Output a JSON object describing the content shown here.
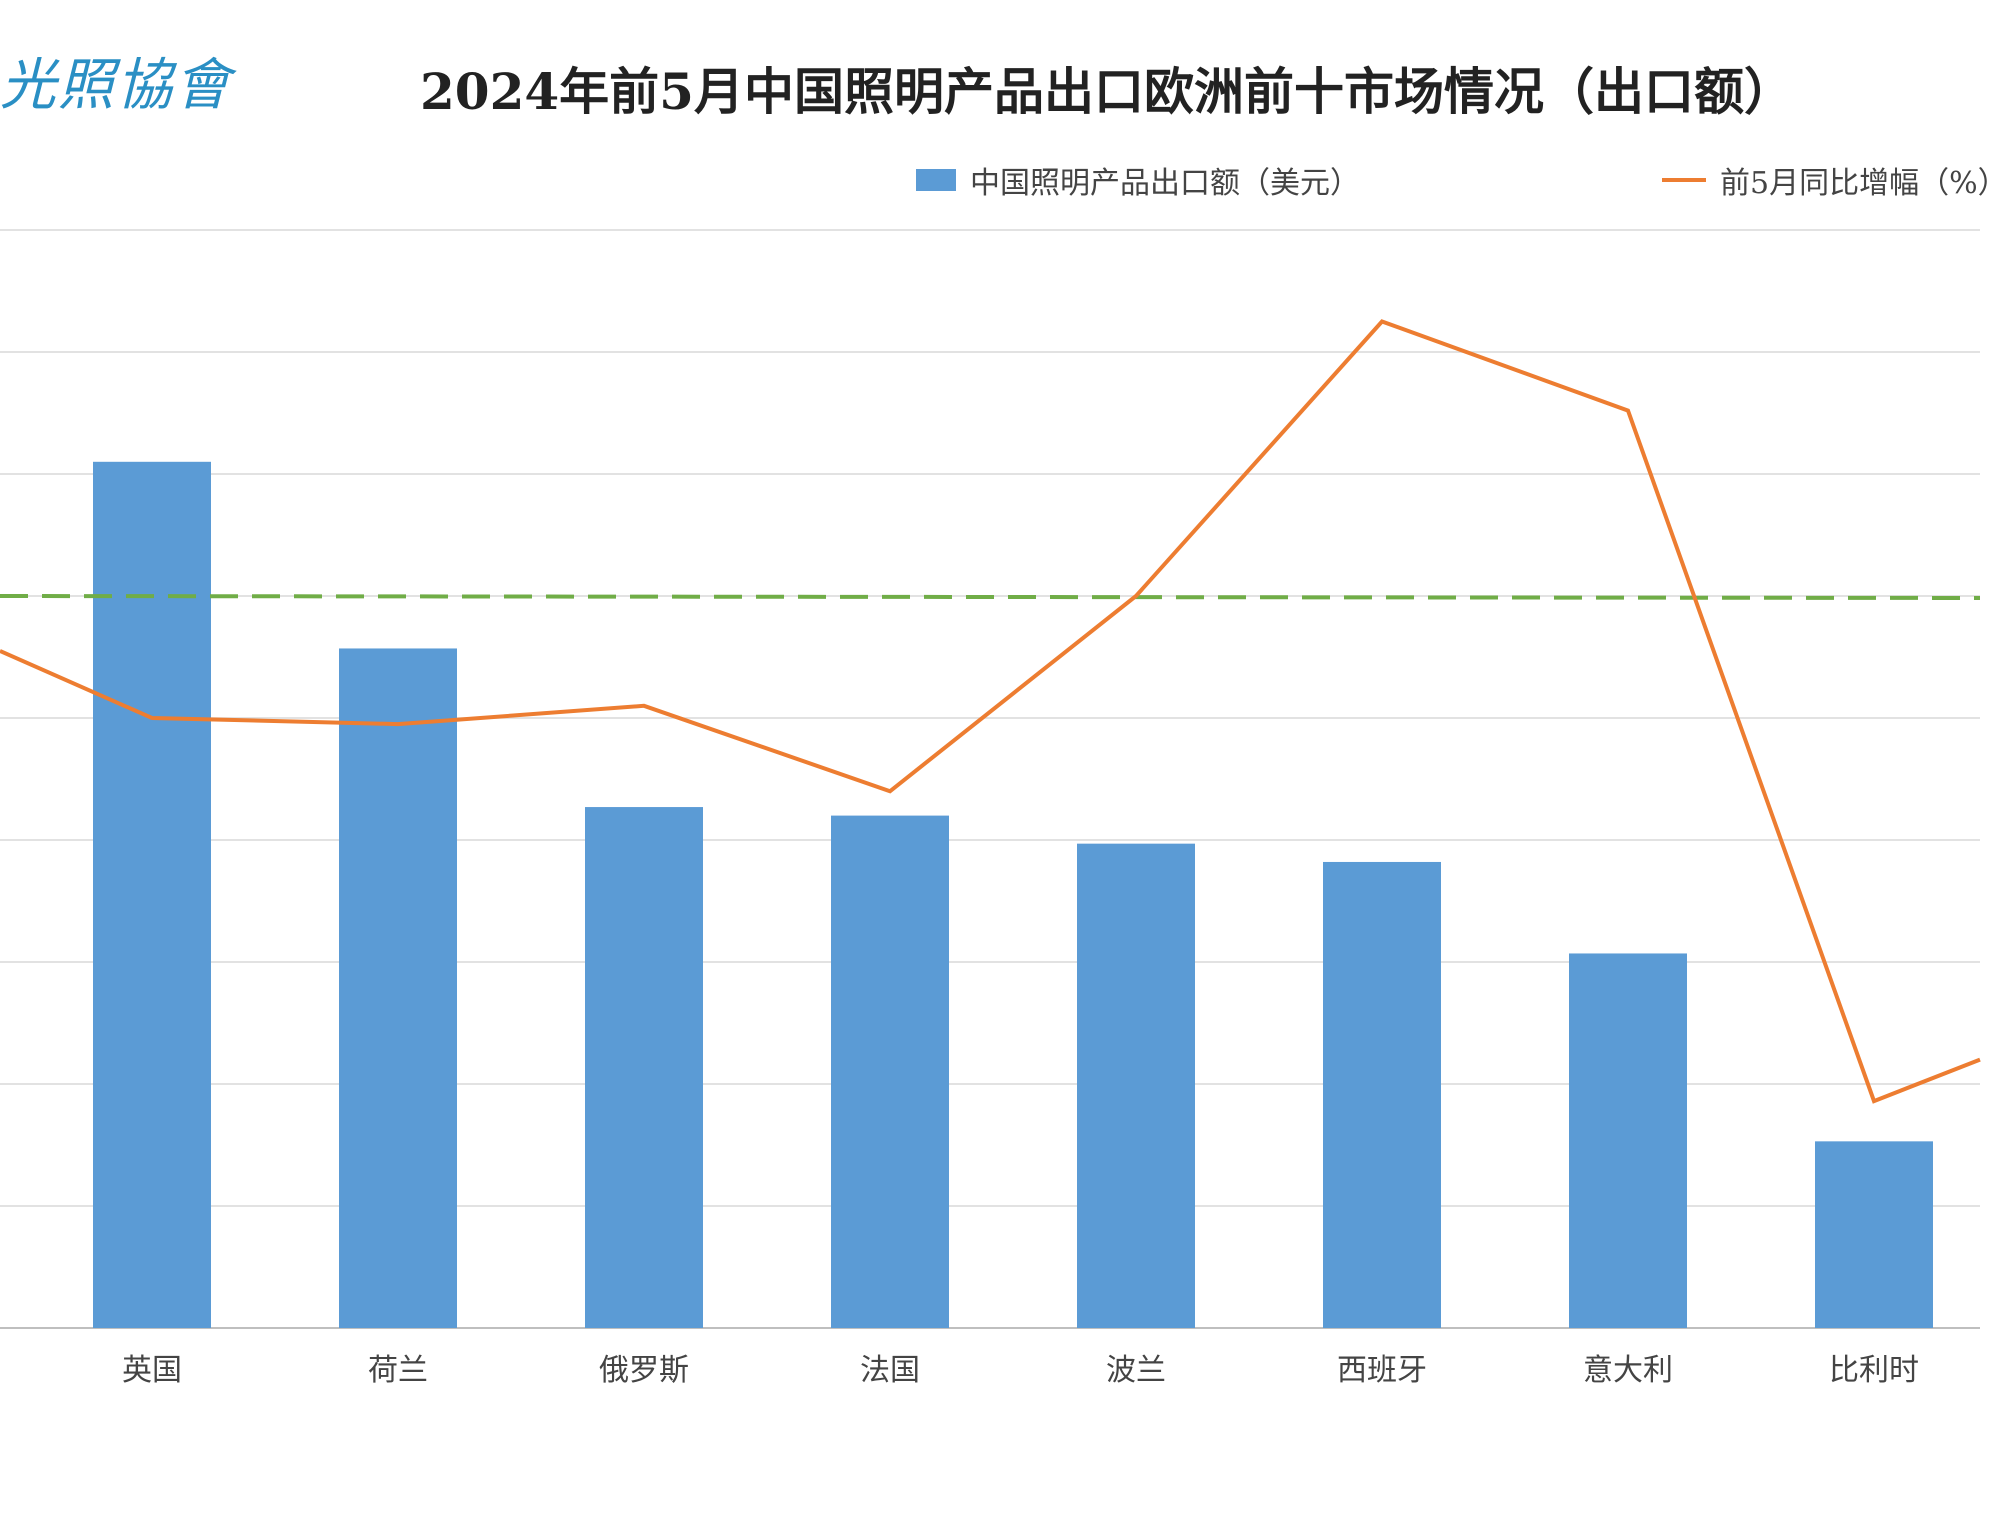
{
  "logo_text": "光照協會",
  "chart_data": {
    "type": "bar",
    "title": "2024年前5月中国照明产品出口欧洲前十市场情况（出口额）",
    "categories": [
      "英国",
      "荷兰",
      "俄罗斯",
      "法国",
      "波兰",
      "西班牙",
      "意大利",
      "比利时"
    ],
    "series": [
      {
        "name": "中国照明产品出口额（美元）",
        "type": "bar",
        "color": "#5b9bd5",
        "values": [
          7.1,
          5.57,
          4.27,
          4.2,
          3.97,
          3.82,
          3.07,
          1.53
        ]
      },
      {
        "name": "前5月同比增幅（%）",
        "type": "line",
        "color": "#ed7d31",
        "values": [
          5.0,
          4.95,
          5.1,
          4.4,
          6.0,
          8.25,
          7.52,
          1.86
        ]
      }
    ],
    "reference_line": {
      "value": 6.0,
      "color": "#70ad47",
      "style": "dashed"
    },
    "ylim": [
      0,
      9
    ],
    "grid": true,
    "legend_position": "top"
  }
}
